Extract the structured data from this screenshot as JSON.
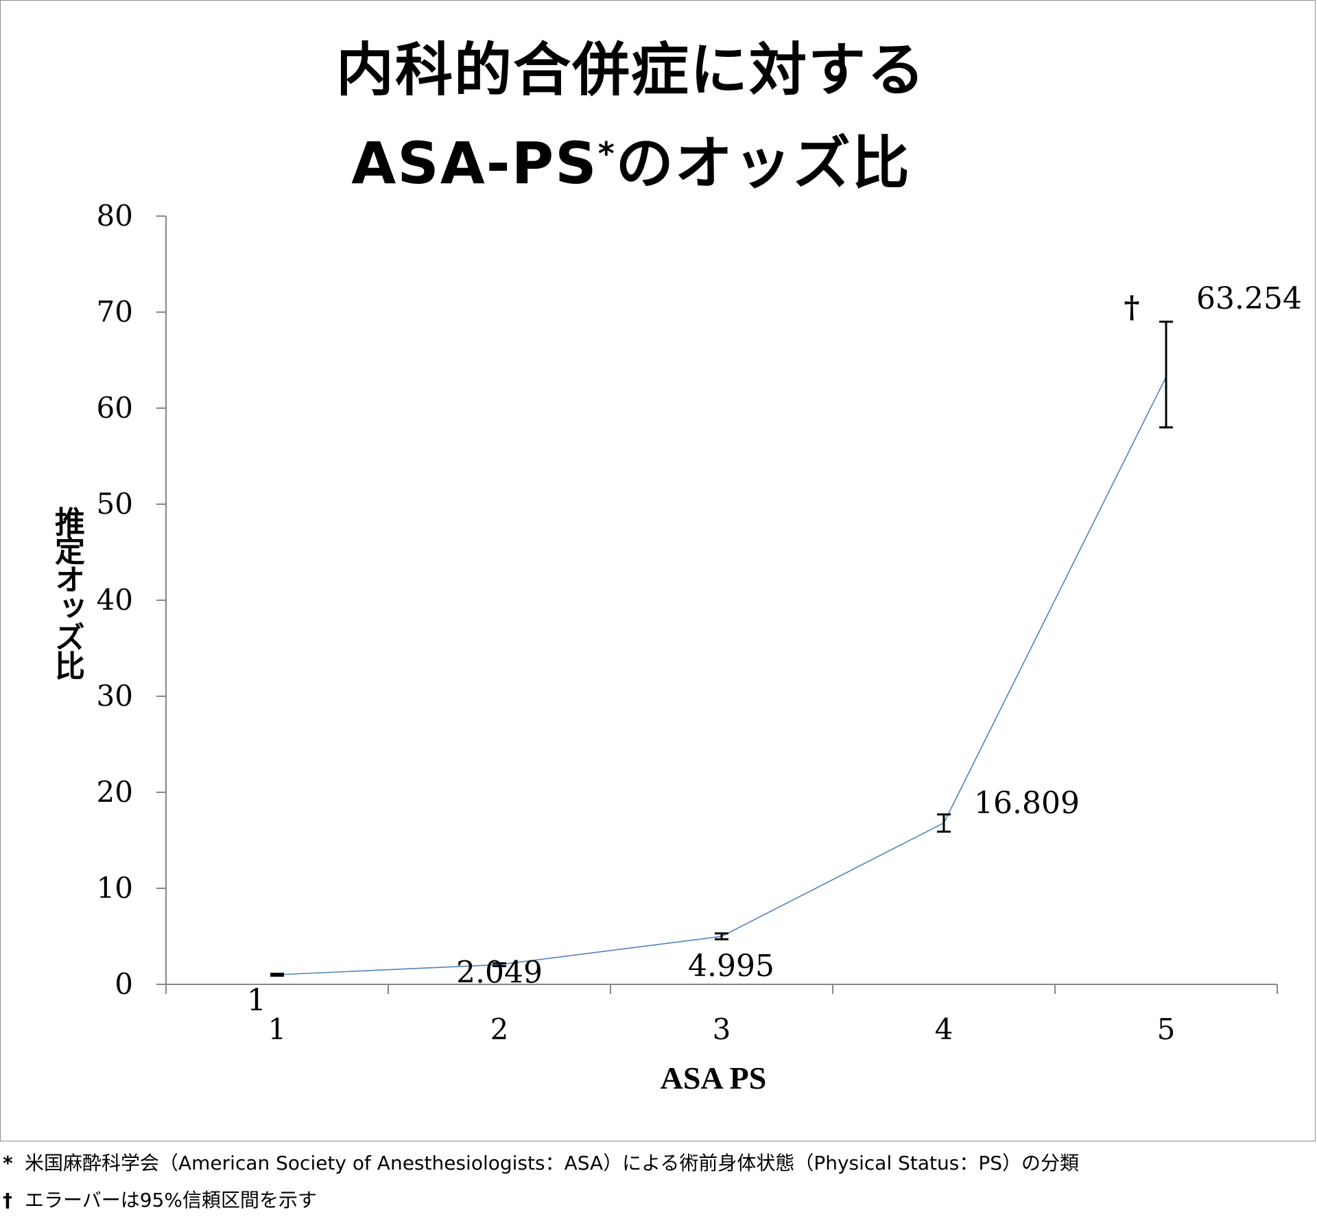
{
  "title": {
    "line1": "内科的合併症に対する",
    "line2_main": "ASA-PS",
    "line2_sup": "*",
    "line2_tail": "のオッズ比"
  },
  "chart_data": {
    "type": "line",
    "xlabel": "ASA PS",
    "ylabel": "推定オッズ比",
    "categories": [
      "1",
      "2",
      "3",
      "4",
      "5"
    ],
    "values": [
      1,
      2.049,
      4.995,
      16.809,
      63.254
    ],
    "data_labels": [
      "1",
      "2.049",
      "4.995",
      "16.809",
      "63.254"
    ],
    "error_bars": [
      [
        0.9,
        1.1
      ],
      [
        1.9,
        2.2
      ],
      [
        4.7,
        5.3
      ],
      [
        15.9,
        17.7
      ],
      [
        58,
        69
      ]
    ],
    "dagger_annotation": "†",
    "ylim": [
      0,
      80
    ],
    "yticks": [
      "0",
      "10",
      "20",
      "30",
      "40",
      "50",
      "60",
      "70",
      "80"
    ],
    "grid": false,
    "legend": "none",
    "line_color": "#4f81bd"
  },
  "footnotes": {
    "asterisk_mark": "*",
    "asterisk_text": "米国麻酔科学会（American Society of Anesthesiologists：ASA）による術前身体状態（Physical Status：PS）の分類",
    "dagger_mark": "†",
    "dagger_text": "エラーバーは95%信頼区間を示す"
  }
}
